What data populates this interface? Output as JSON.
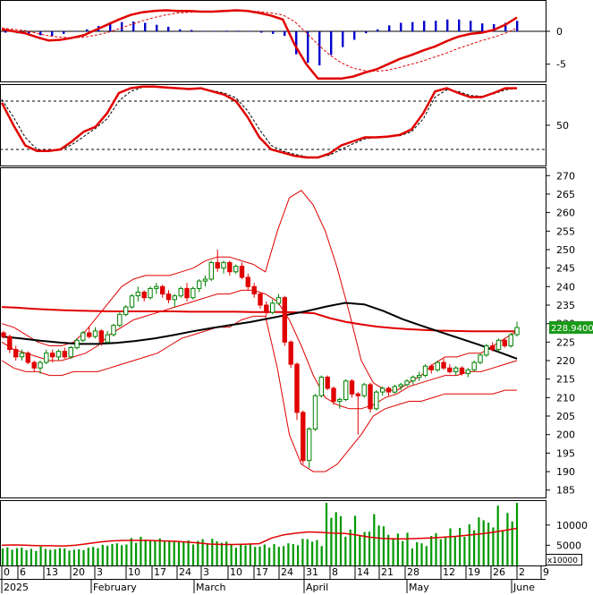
{
  "chart_data": [
    {
      "type": "line",
      "panel": "macd",
      "y_ticks": [
        0,
        -5
      ],
      "ylim": [
        -7.5,
        4.5
      ],
      "series": [
        {
          "role": "macd_line",
          "color": "#e00000",
          "values": [
            0.3,
            0.0,
            -0.3,
            -0.9,
            -1.4,
            -1.3,
            -1.0,
            -0.6,
            0.2,
            1.0,
            1.8,
            2.5,
            2.9,
            3.1,
            3.2,
            3.1,
            3.1,
            3.0,
            3.0,
            3.1,
            3.2,
            3.1,
            2.8,
            2.4,
            1.8,
            -2.0,
            -5.0,
            -7.2,
            -7.2,
            -7.2,
            -6.9,
            -6.3,
            -5.8,
            -5.0,
            -4.2,
            -3.6,
            -2.9,
            -2.3,
            -1.5,
            -0.8,
            -0.4,
            -0.2,
            0.2,
            1.0,
            2.1
          ]
        },
        {
          "role": "signal_line",
          "color": "#e00000",
          "dashed": true,
          "values": [
            0.5,
            0.3,
            0.1,
            -0.3,
            -0.7,
            -0.9,
            -1.0,
            -0.9,
            -0.6,
            -0.2,
            0.4,
            1.0,
            1.6,
            2.1,
            2.5,
            2.8,
            2.9,
            3.0,
            3.0,
            3.0,
            3.1,
            3.1,
            3.0,
            2.8,
            2.5,
            1.5,
            -0.2,
            -2.0,
            -3.6,
            -4.8,
            -5.6,
            -6.0,
            -6.1,
            -5.9,
            -5.5,
            -5.0,
            -4.5,
            -3.9,
            -3.3,
            -2.6,
            -2.0,
            -1.4,
            -0.9,
            -0.3,
            0.5
          ]
        },
        {
          "role": "histogram",
          "color": "#0000cc",
          "values": [
            -0.2,
            -0.3,
            -0.4,
            -0.6,
            -0.7,
            -0.4,
            0.0,
            0.3,
            0.8,
            1.2,
            1.4,
            1.5,
            1.3,
            1.0,
            0.7,
            0.3,
            0.2,
            0.0,
            0.0,
            0.1,
            0.1,
            0.0,
            -0.2,
            -0.4,
            -0.7,
            -3.5,
            -4.8,
            -5.2,
            -3.6,
            -2.4,
            -1.3,
            -0.3,
            0.3,
            0.9,
            1.3,
            1.4,
            1.6,
            1.6,
            1.8,
            1.8,
            1.6,
            1.2,
            1.1,
            1.3,
            1.6
          ]
        }
      ]
    },
    {
      "type": "line",
      "panel": "stochastic",
      "y_ticks": [
        50
      ],
      "ylim": [
        0,
        100
      ],
      "reference_lines": [
        80,
        20
      ],
      "series": [
        {
          "role": "k_line",
          "color": "#e00000",
          "values": [
            78,
            50,
            25,
            18,
            18,
            20,
            30,
            42,
            48,
            65,
            90,
            96,
            98,
            98,
            97,
            96,
            95,
            96,
            92,
            88,
            80,
            60,
            35,
            20,
            16,
            12,
            10,
            10,
            15,
            25,
            30,
            35,
            35,
            36,
            38,
            45,
            65,
            92,
            96,
            90,
            85,
            85,
            90,
            96,
            96
          ]
        },
        {
          "role": "d_line",
          "color": "#000000",
          "dashed": true,
          "values": [
            82,
            60,
            35,
            20,
            18,
            19,
            26,
            36,
            46,
            58,
            80,
            92,
            97,
            98,
            97,
            96,
            95,
            95,
            93,
            90,
            84,
            68,
            45,
            25,
            18,
            14,
            11,
            10,
            13,
            20,
            27,
            33,
            35,
            36,
            37,
            42,
            58,
            85,
            94,
            92,
            87,
            86,
            89,
            94,
            96
          ]
        }
      ]
    },
    {
      "type": "candlestick",
      "panel": "price",
      "y_ticks": [
        185,
        190,
        195,
        200,
        205,
        210,
        215,
        220,
        225,
        230,
        235,
        240,
        245,
        250,
        255,
        260,
        265,
        270
      ],
      "ylim": [
        183,
        272
      ],
      "last_price_label": "228.9400",
      "candles": [
        [
          227.5,
          228.0,
          226.0,
          226.5
        ],
        [
          226.5,
          227.0,
          222.0,
          223.0
        ],
        [
          223.0,
          224.0,
          220.0,
          221.0
        ],
        [
          221.0,
          223.0,
          220.0,
          222.0
        ],
        [
          222.0,
          222.5,
          219.0,
          219.5
        ],
        [
          219.5,
          220.0,
          217.0,
          218.0
        ],
        [
          218.0,
          220.0,
          216.5,
          219.5
        ],
        [
          219.5,
          223.0,
          219.0,
          222.0
        ],
        [
          222.0,
          223.0,
          219.5,
          221.0
        ],
        [
          221.0,
          223.0,
          220.0,
          222.5
        ],
        [
          222.5,
          223.5,
          220.5,
          221.0
        ],
        [
          221.0,
          224.0,
          220.5,
          223.5
        ],
        [
          223.5,
          226.0,
          223.0,
          225.5
        ],
        [
          225.5,
          228.0,
          225.0,
          227.5
        ],
        [
          227.5,
          229.0,
          226.0,
          226.5
        ],
        [
          226.5,
          229.0,
          226.0,
          228.0
        ],
        [
          228.0,
          228.5,
          224.0,
          225.0
        ],
        [
          225.0,
          228.0,
          224.5,
          227.0
        ],
        [
          227.0,
          230.0,
          226.5,
          229.5
        ],
        [
          229.5,
          233.0,
          229.0,
          232.5
        ],
        [
          232.5,
          235.0,
          232.0,
          234.5
        ],
        [
          234.5,
          238.0,
          234.0,
          237.5
        ],
        [
          237.5,
          240.0,
          236.0,
          238.5
        ],
        [
          238.5,
          239.0,
          236.0,
          237.0
        ],
        [
          237.0,
          240.0,
          236.5,
          239.5
        ],
        [
          239.5,
          241.0,
          238.0,
          240.0
        ],
        [
          240.0,
          240.5,
          237.0,
          238.0
        ],
        [
          238.0,
          239.0,
          235.5,
          236.5
        ],
        [
          236.5,
          238.0,
          234.5,
          237.5
        ],
        [
          237.5,
          240.0,
          237.0,
          239.5
        ],
        [
          239.5,
          241.0,
          236.0,
          237.0
        ],
        [
          237.0,
          240.0,
          236.5,
          239.5
        ],
        [
          239.5,
          242.0,
          238.5,
          241.5
        ],
        [
          241.5,
          243.0,
          240.0,
          242.0
        ],
        [
          242.0,
          247.0,
          241.5,
          246.5
        ],
        [
          246.5,
          250.0,
          244.0,
          245.0
        ],
        [
          245.0,
          247.0,
          243.5,
          246.5
        ],
        [
          246.5,
          247.0,
          243.0,
          244.0
        ],
        [
          244.0,
          246.0,
          243.5,
          245.5
        ],
        [
          245.5,
          246.5,
          242.0,
          242.5
        ],
        [
          242.5,
          243.5,
          239.0,
          240.0
        ],
        [
          240.0,
          241.0,
          237.0,
          238.0
        ],
        [
          238.0,
          238.5,
          234.0,
          235.0
        ],
        [
          235.0,
          236.0,
          232.0,
          233.0
        ],
        [
          233.0,
          236.5,
          232.5,
          235.5
        ],
        [
          235.5,
          238.0,
          235.0,
          237.0
        ],
        [
          237.0,
          237.5,
          224.0,
          225.0
        ],
        [
          225.0,
          225.5,
          218.0,
          219.0
        ],
        [
          219.0,
          219.5,
          204.0,
          206.0
        ],
        [
          206.0,
          206.5,
          192.0,
          193.0
        ],
        [
          193.0,
          202.0,
          191.0,
          201.5
        ],
        [
          201.5,
          211.0,
          201.0,
          210.5
        ],
        [
          210.5,
          216.0,
          210.0,
          215.5
        ],
        [
          215.5,
          216.0,
          212.0,
          212.5
        ],
        [
          212.5,
          213.0,
          208.0,
          209.0
        ],
        [
          209.0,
          210.0,
          207.0,
          209.5
        ],
        [
          209.5,
          215.0,
          209.0,
          214.5
        ],
        [
          214.5,
          215.0,
          210.0,
          211.0
        ],
        [
          211.0,
          211.5,
          200.0,
          210.5
        ],
        [
          210.5,
          214.0,
          210.0,
          213.5
        ],
        [
          213.5,
          214.0,
          206.0,
          207.0
        ],
        [
          207.0,
          212.0,
          206.5,
          211.5
        ],
        [
          211.5,
          213.0,
          210.5,
          212.5
        ],
        [
          212.5,
          213.0,
          210.5,
          211.5
        ],
        [
          211.5,
          213.5,
          211.0,
          213.0
        ],
        [
          213.0,
          214.0,
          212.0,
          213.5
        ],
        [
          213.5,
          215.0,
          213.0,
          214.5
        ],
        [
          214.5,
          216.0,
          213.5,
          215.5
        ],
        [
          215.5,
          217.0,
          214.5,
          216.0
        ],
        [
          216.0,
          219.0,
          215.5,
          218.5
        ],
        [
          218.5,
          219.0,
          216.5,
          217.5
        ],
        [
          217.5,
          220.0,
          217.0,
          219.5
        ],
        [
          219.5,
          220.5,
          217.5,
          218.0
        ],
        [
          218.0,
          219.0,
          216.5,
          217.0
        ],
        [
          217.0,
          218.5,
          216.0,
          218.0
        ],
        [
          218.0,
          218.5,
          216.0,
          216.5
        ],
        [
          216.5,
          218.0,
          215.5,
          217.5
        ],
        [
          217.5,
          220.0,
          217.0,
          219.5
        ],
        [
          219.5,
          222.0,
          219.0,
          221.5
        ],
        [
          221.5,
          224.5,
          221.0,
          224.0
        ],
        [
          224.0,
          225.0,
          222.5,
          223.0
        ],
        [
          223.0,
          226.0,
          222.5,
          225.5
        ],
        [
          225.5,
          226.0,
          223.5,
          224.0
        ],
        [
          224.0,
          227.5,
          223.5,
          227.0
        ],
        [
          227.0,
          230.5,
          226.5,
          228.94
        ]
      ],
      "series": [
        {
          "role": "bollinger_upper",
          "color": "#e00000",
          "values": [
            230,
            229,
            227,
            225,
            224,
            224,
            225,
            228,
            232,
            236,
            240,
            242,
            243,
            243,
            243,
            244,
            245,
            247,
            248,
            248,
            247,
            246,
            244,
            255,
            264,
            266,
            262,
            255,
            245,
            233,
            220,
            214,
            212,
            212,
            214,
            216,
            219,
            221,
            221,
            222,
            222,
            224,
            226,
            228
          ]
        },
        {
          "role": "bollinger_mid",
          "color": "#e00000",
          "values": [
            225,
            223,
            222,
            221,
            220,
            220,
            221,
            222,
            224,
            227,
            229,
            231,
            232,
            233,
            234,
            235,
            236,
            237,
            238,
            238,
            239,
            239,
            238,
            236,
            231,
            224,
            216,
            210,
            208,
            207,
            207,
            208,
            210,
            211,
            213,
            214,
            215,
            216,
            216,
            217,
            217,
            218,
            219,
            220
          ]
        },
        {
          "role": "bollinger_lower",
          "color": "#e00000",
          "values": [
            220,
            218,
            217,
            217,
            216,
            216,
            217,
            217,
            217,
            218,
            219,
            220,
            221,
            222,
            224,
            226,
            227,
            228,
            229,
            229,
            231,
            232,
            232,
            218,
            200,
            192,
            190,
            190,
            192,
            196,
            200,
            205,
            207,
            208,
            209,
            209,
            210,
            211,
            211,
            211,
            211,
            211,
            212,
            212
          ]
        },
        {
          "role": "ma_long",
          "color": "#e00000",
          "values": [
            234.5,
            234.3,
            234.0,
            233.8,
            233.6,
            233.5,
            233.4,
            233.3,
            233.3,
            233.3,
            233.3,
            233.3,
            233.2,
            233.2,
            233.2,
            233.2,
            233.1,
            233.1,
            233.1,
            233.0,
            232.8,
            231.5,
            230.5,
            229.8,
            229.2,
            228.8,
            228.5,
            228.3,
            228.1,
            228.0,
            227.9,
            227.9,
            227.9,
            227.9
          ]
        },
        {
          "role": "ma_mid",
          "color": "#000000",
          "values": [
            226.5,
            226.0,
            225.4,
            224.9,
            224.5,
            224.5,
            224.8,
            225.3,
            226.0,
            226.9,
            227.9,
            228.8,
            229.6,
            230.4,
            231.4,
            232.4,
            233.4,
            234.6,
            235.6,
            235.2,
            233.4,
            231.2,
            229.4,
            227.7,
            226.0,
            224.3,
            222.4,
            220.5
          ]
        }
      ]
    },
    {
      "type": "bar",
      "panel": "volume",
      "y_ticks": [
        5000,
        10000
      ],
      "unit_label": "x10000",
      "ylim": [
        0,
        15500
      ],
      "values": [
        4200,
        4500,
        3900,
        4300,
        4400,
        3800,
        4100,
        3600,
        4700,
        4100,
        3900,
        4000,
        4300,
        4200,
        3700,
        3900,
        4000,
        3800,
        4400,
        4600,
        4300,
        5100,
        4900,
        5300,
        5500,
        5000,
        5200,
        6800,
        5600,
        7100,
        6400,
        6300,
        6100,
        6700,
        6000,
        6200,
        6100,
        6100,
        5800,
        6200,
        5200,
        6100,
        6500,
        5400,
        6600,
        6000,
        5600,
        5900,
        5100,
        4400,
        5400,
        5000,
        5300,
        4600,
        4700,
        5200,
        4400,
        5300,
        4600,
        4800,
        5500,
        5300,
        5000,
        6600,
        6500,
        5900,
        6300,
        4800,
        15500,
        11800,
        13200,
        12200,
        7100,
        8900,
        12300,
        7400,
        8300,
        8400,
        12700,
        9900,
        9700,
        7600,
        6800,
        7900,
        6000,
        8100,
        4200,
        5800,
        5500,
        4800,
        7300,
        8000,
        6500,
        6900,
        9200,
        7200,
        9300,
        7100,
        10200,
        8700,
        11900,
        11200,
        10600,
        9400,
        14800,
        8500,
        13000,
        10900,
        15500
      ],
      "ma_values": [
        5000,
        5100,
        5000,
        4900,
        4900,
        4800,
        5000,
        5400,
        5800,
        6100,
        6200,
        6200,
        6200,
        6100,
        6000,
        5800,
        5600,
        5300,
        5200,
        5200,
        5300,
        5400,
        6800,
        7600,
        8000,
        8300,
        8200,
        8000,
        7900,
        7500,
        7000,
        6700,
        6600,
        6600,
        6700,
        6800,
        7000,
        7200,
        7500,
        7800,
        8200,
        8700,
        9200
      ]
    }
  ],
  "x_axis": {
    "day_ticks": [
      "0",
      "6",
      "13",
      "20",
      "3",
      "10",
      "17",
      "24",
      "3",
      "10",
      "17",
      "24",
      "31",
      "8",
      "14",
      "21",
      "28",
      "12",
      "19",
      "26",
      "2",
      "9"
    ],
    "month_labels": [
      "2025",
      "February",
      "March",
      "April",
      "May",
      "June"
    ]
  }
}
